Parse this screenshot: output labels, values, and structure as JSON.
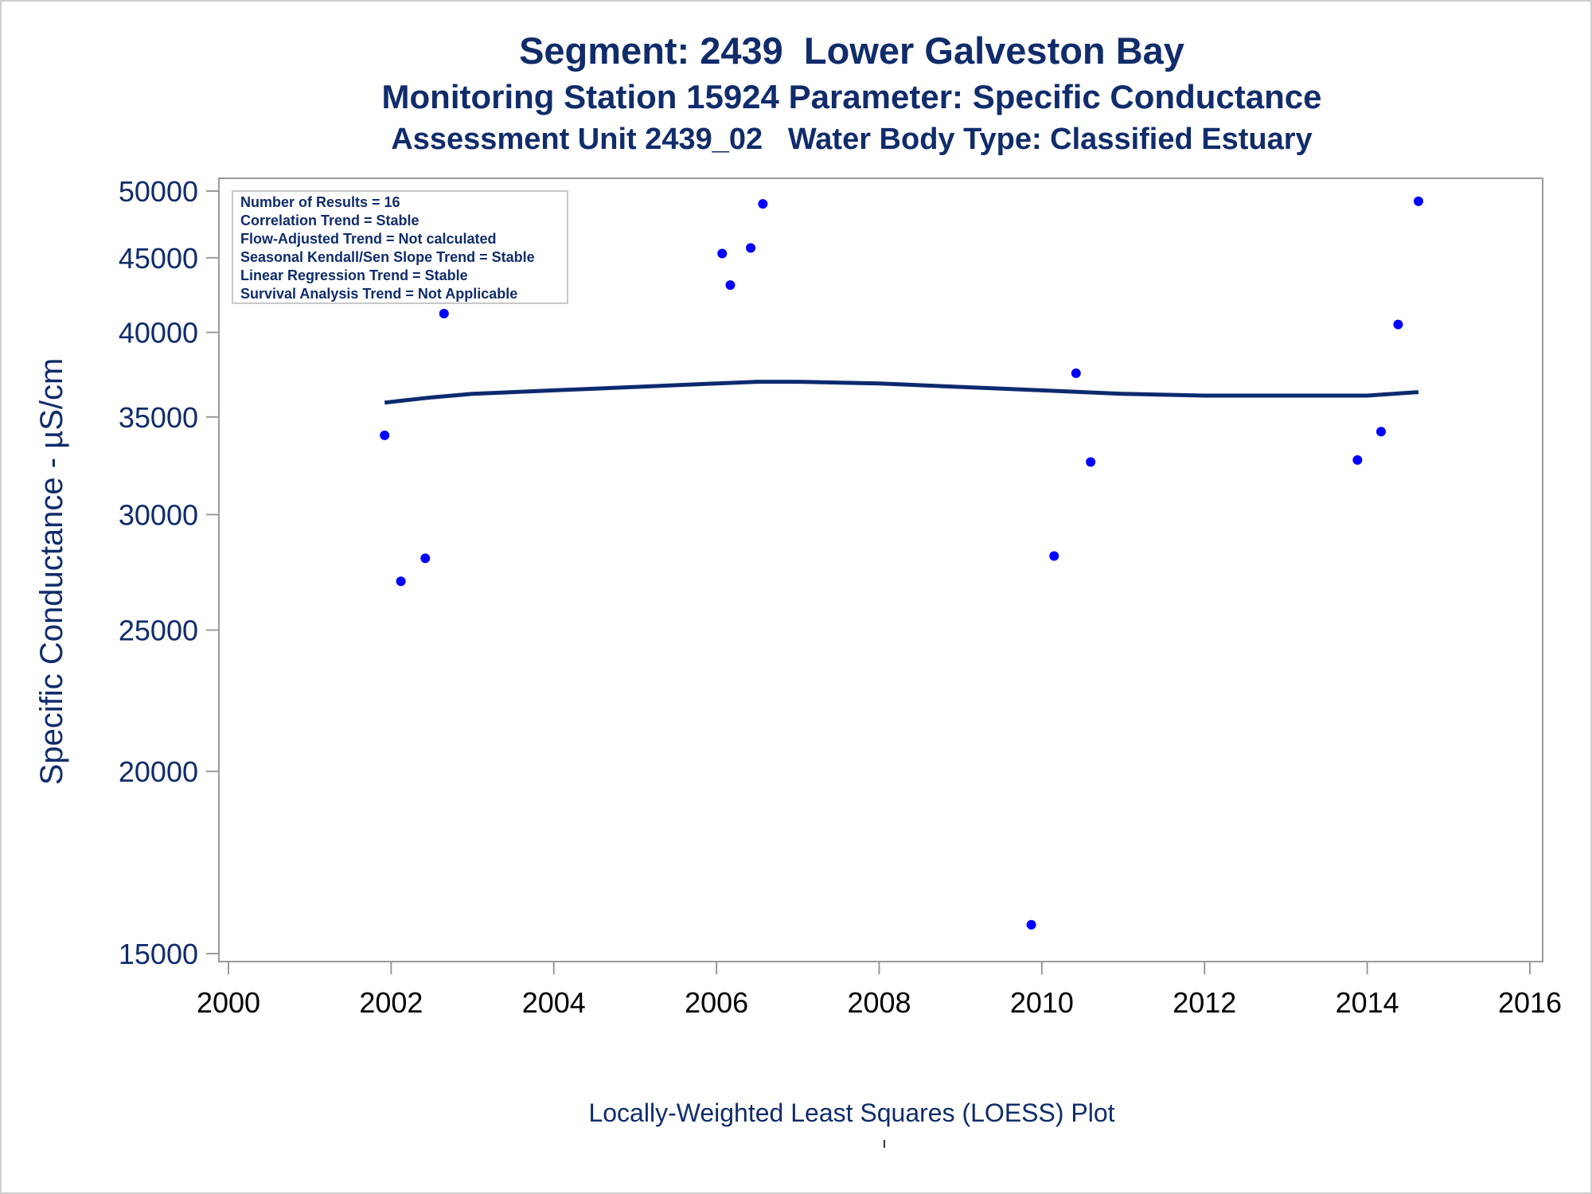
{
  "titles": {
    "line1": "Segment: 2439  Lower Galveston Bay",
    "line2": "Monitoring Station 15924 Parameter: Specific Conductance",
    "line3": "Assessment Unit 2439_02   Water Body Type: Classified Estuary"
  },
  "footer": "Locally-Weighted Least Squares (LOESS) Plot",
  "stats": [
    "Number of Results = 16",
    "Correlation Trend = Stable",
    "Flow-Adjusted Trend = Not calculated",
    "Seasonal Kendall/Sen Slope Trend = Stable",
    "Linear Regression Trend = Stable",
    "Survival Analysis Trend = Not Applicable"
  ],
  "colors": {
    "text": "#112c6b",
    "points": "#0000ff",
    "loess": "#0b2a6e",
    "frame": "#9a9a9a"
  },
  "chart_data": {
    "type": "scatter",
    "ylabel": "Specific Conductance -  µS/cm",
    "xlabel": "",
    "yscale": "log",
    "xlim": [
      2000,
      2016
    ],
    "ylim": [
      15000,
      50000
    ],
    "xticks": [
      "2000",
      "2002",
      "2004",
      "2006",
      "2008",
      "2010",
      "2012",
      "2014",
      "2016"
    ],
    "yticks": [
      "15000",
      "20000",
      "25000",
      "30000",
      "35000",
      "40000",
      "45000",
      "50000"
    ],
    "grid": false,
    "series": [
      {
        "type": "scatter",
        "x": [
          2001.92,
          2002.12,
          2002.42,
          2002.65,
          2006.07,
          2006.17,
          2006.42,
          2006.57,
          2009.87,
          2010.15,
          2010.42,
          2010.6,
          2013.88,
          2014.17,
          2014.38,
          2014.63
        ],
        "y": [
          34000,
          27000,
          28000,
          41200,
          45300,
          43100,
          45700,
          49000,
          15700,
          28100,
          37500,
          32600,
          32700,
          34200,
          40500,
          49200
        ]
      },
      {
        "type": "line",
        "x": [
          2001.92,
          2002.5,
          2003,
          2004,
          2005,
          2006,
          2006.5,
          2007,
          2008,
          2009,
          2010,
          2011,
          2012,
          2013,
          2014,
          2014.63
        ],
        "y": [
          35800,
          36100,
          36300,
          36500,
          36700,
          36900,
          37000,
          37000,
          36900,
          36700,
          36500,
          36300,
          36200,
          36200,
          36200,
          36400
        ]
      }
    ]
  }
}
